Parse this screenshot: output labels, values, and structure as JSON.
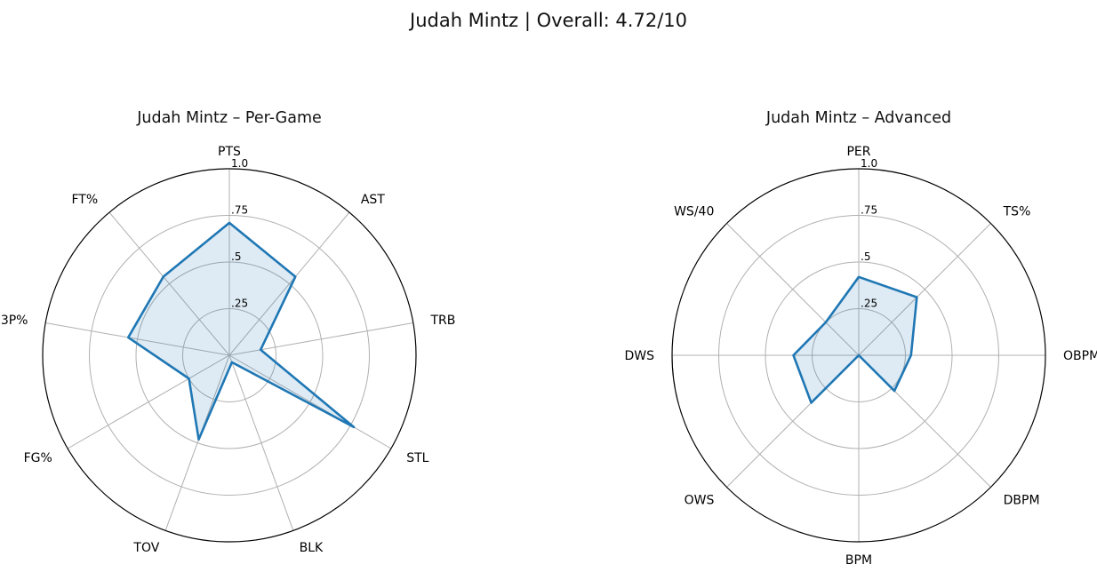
{
  "figure": {
    "title": "Judah Mintz | Overall: 4.72/10"
  },
  "chart_data": [
    {
      "type": "radar",
      "title": "Judah Mintz – Per-Game",
      "axes": [
        "PTS",
        "AST",
        "TRB",
        "STL",
        "BLK",
        "TOV",
        "FG%",
        "3P%",
        "FT%"
      ],
      "values": [
        0.71,
        0.55,
        0.17,
        0.77,
        0.04,
        0.48,
        0.25,
        0.55,
        0.55
      ],
      "rlim": [
        0,
        1
      ],
      "radial_ticks": [
        0.25,
        0.5,
        0.75,
        1.0
      ],
      "radial_tick_labels": [
        ".25",
        ".5",
        ".75",
        "1.0"
      ],
      "grid": true,
      "colors": {
        "line": "#1f77b4",
        "fill": "#1f77b4"
      }
    },
    {
      "type": "radar",
      "title": "Judah Mintz – Advanced",
      "axes": [
        "PER",
        "TS%",
        "OBPM",
        "DBPM",
        "BPM",
        "OWS",
        "DWS",
        "WS/40"
      ],
      "values": [
        0.42,
        0.44,
        0.28,
        0.27,
        0.0,
        0.36,
        0.35,
        0.25
      ],
      "rlim": [
        0,
        1
      ],
      "radial_ticks": [
        0.25,
        0.5,
        0.75,
        1.0
      ],
      "radial_tick_labels": [
        ".25",
        ".5",
        ".75",
        "1.0"
      ],
      "grid": true,
      "colors": {
        "line": "#1f77b4",
        "fill": "#1f77b4"
      }
    }
  ]
}
